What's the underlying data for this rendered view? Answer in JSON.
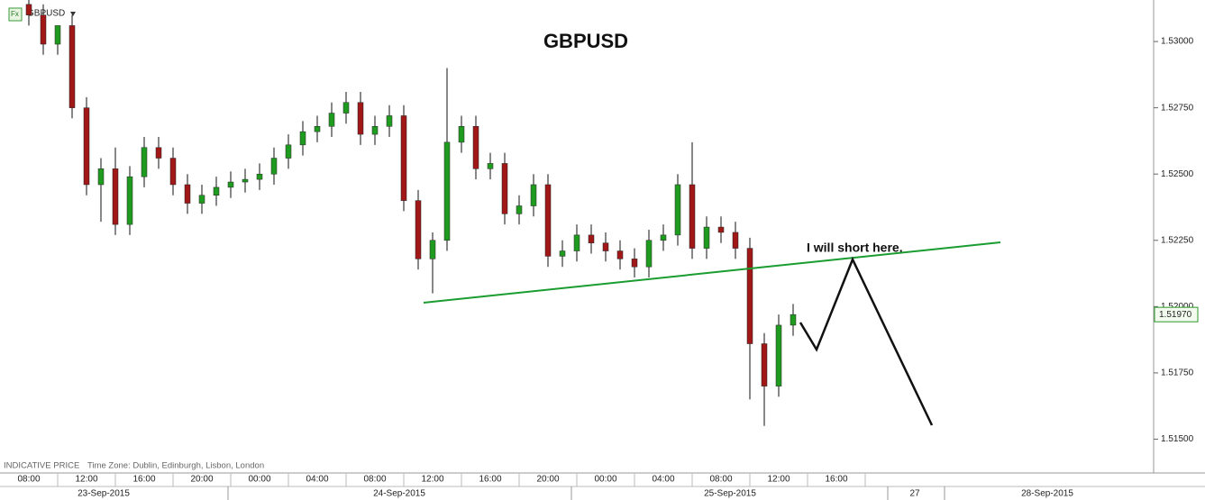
{
  "chart_data": {
    "type": "candlestick",
    "title": "GBPUSD",
    "symbol": "GBPUSD",
    "footer": "INDICATIVE PRICE",
    "time_zone": "Time Zone: Dublin, Edinburgh, Lisbon, London",
    "annotation": "I will short here.",
    "up_color": "#1f9b1f",
    "down_color": "#a01818",
    "open": [
      1.5314,
      1.531,
      1.5299,
      1.5306,
      1.5275,
      1.5246,
      1.5252,
      1.5231,
      1.5249,
      1.526,
      1.5256,
      1.5246,
      1.5239,
      1.5242,
      1.5245,
      1.5247,
      1.5248,
      1.525,
      1.5256,
      1.5261,
      1.5266,
      1.5268,
      1.5273,
      1.5277,
      1.5265,
      1.5268,
      1.5272,
      1.524,
      1.5218,
      1.5225,
      1.5262,
      1.5268,
      1.5252,
      1.5254,
      1.5235,
      1.5238,
      1.5246,
      1.5219,
      1.5221,
      1.5227,
      1.5224,
      1.5221,
      1.5218,
      1.5215,
      1.5225,
      1.5227,
      1.5246,
      1.5222,
      1.523,
      1.5228,
      1.5222,
      1.5186,
      1.517,
      1.5193
    ],
    "high": [
      1.5316,
      1.5314,
      1.5306,
      1.531,
      1.5279,
      1.5256,
      1.526,
      1.5253,
      1.5264,
      1.5264,
      1.526,
      1.525,
      1.5246,
      1.5249,
      1.5251,
      1.5252,
      1.5254,
      1.526,
      1.5265,
      1.527,
      1.5272,
      1.5277,
      1.5281,
      1.5281,
      1.5272,
      1.5276,
      1.5276,
      1.5244,
      1.5228,
      1.529,
      1.5272,
      1.5272,
      1.5258,
      1.5258,
      1.5242,
      1.525,
      1.525,
      1.5225,
      1.5231,
      1.5231,
      1.5228,
      1.5225,
      1.5222,
      1.5229,
      1.5231,
      1.525,
      1.5262,
      1.5234,
      1.5234,
      1.5232,
      1.5226,
      1.519,
      1.5197,
      1.5201
    ],
    "low": [
      1.5306,
      1.5295,
      1.5295,
      1.5271,
      1.5242,
      1.5232,
      1.5227,
      1.5227,
      1.5245,
      1.5252,
      1.5242,
      1.5235,
      1.5235,
      1.5238,
      1.5241,
      1.5243,
      1.5244,
      1.5246,
      1.5252,
      1.5257,
      1.5262,
      1.5264,
      1.5269,
      1.5261,
      1.5261,
      1.5264,
      1.5236,
      1.5214,
      1.5205,
      1.5221,
      1.5258,
      1.5248,
      1.5248,
      1.5231,
      1.5231,
      1.5234,
      1.5215,
      1.5215,
      1.5217,
      1.522,
      1.5217,
      1.5214,
      1.5211,
      1.5211,
      1.5221,
      1.5223,
      1.5218,
      1.5218,
      1.5224,
      1.5218,
      1.5165,
      1.5155,
      1.5166,
      1.5189
    ],
    "close": [
      1.531,
      1.5299,
      1.5306,
      1.5275,
      1.5246,
      1.5252,
      1.5231,
      1.5249,
      1.526,
      1.5256,
      1.5246,
      1.5239,
      1.5242,
      1.5245,
      1.5247,
      1.5248,
      1.525,
      1.5256,
      1.5261,
      1.5266,
      1.5268,
      1.5273,
      1.5277,
      1.5265,
      1.5268,
      1.5272,
      1.524,
      1.5218,
      1.5225,
      1.5262,
      1.5268,
      1.5252,
      1.5254,
      1.5235,
      1.5238,
      1.5246,
      1.5219,
      1.5221,
      1.5227,
      1.5224,
      1.5221,
      1.5218,
      1.5215,
      1.5225,
      1.5227,
      1.5246,
      1.5222,
      1.523,
      1.5228,
      1.5222,
      1.5186,
      1.517,
      1.5193,
      1.5197
    ],
    "last_price": {
      "value": 1.5197,
      "label": "1.51970"
    },
    "ylim": [
      1.5142,
      1.5316
    ],
    "yticks": [
      {
        "value": 1.515,
        "label": "1.51500"
      },
      {
        "value": 1.5175,
        "label": "1.51750"
      },
      {
        "value": 1.52,
        "label": "1.52000"
      },
      {
        "value": 1.5225,
        "label": "1.52250"
      },
      {
        "value": 1.525,
        "label": "1.52500"
      },
      {
        "value": 1.5275,
        "label": "1.52750"
      },
      {
        "value": 1.53,
        "label": "1.53000"
      }
    ],
    "time_labels": [
      "08:00",
      "12:00",
      "16:00",
      "20:00",
      "00:00",
      "04:00",
      "08:00",
      "12:00",
      "16:00",
      "20:00",
      "00:00",
      "04:00",
      "08:00",
      "12:00",
      "16:00"
    ],
    "date_labels": [
      "23-Sep-2015",
      "24-Sep-2015",
      "25-Sep-2015",
      "27",
      "28-Sep-2015"
    ]
  }
}
